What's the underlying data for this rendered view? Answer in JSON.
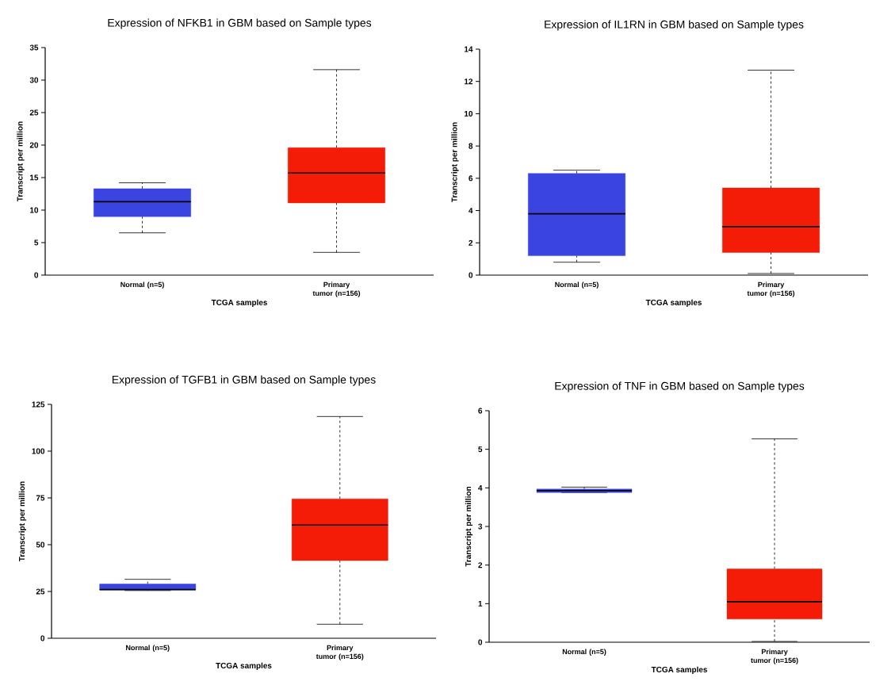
{
  "chart_data": [
    {
      "type": "box",
      "title": "Expression of NFKB1 in GBM based on Sample types",
      "xlabel": "TCGA samples",
      "ylabel": "Transcript per million",
      "categories": [
        "Normal (n=5)",
        "Primary tumor (n=156)"
      ],
      "colors": [
        "#3a44e0",
        "#f41c06"
      ],
      "boxes": [
        {
          "low": 6.5,
          "q1": 9.0,
          "median": 11.3,
          "q3": 13.3,
          "high": 14.2
        },
        {
          "low": 3.5,
          "q1": 11.1,
          "median": 15.7,
          "q3": 19.6,
          "high": 31.6
        }
      ],
      "ylim": [
        0,
        35
      ],
      "yticks": [
        0,
        5,
        10,
        15,
        20,
        25,
        30,
        35
      ]
    },
    {
      "type": "box",
      "title": "Expression of IL1RN in GBM based on Sample types",
      "xlabel": "TCGA samples",
      "ylabel": "Transcript per million",
      "categories": [
        "Normal (n=5)",
        "Primary tumor (n=156)"
      ],
      "colors": [
        "#3a44e0",
        "#f41c06"
      ],
      "boxes": [
        {
          "low": 0.8,
          "q1": 1.2,
          "median": 3.8,
          "q3": 6.3,
          "high": 6.5
        },
        {
          "low": 0.1,
          "q1": 1.4,
          "median": 3.0,
          "q3": 5.4,
          "high": 12.7
        }
      ],
      "ylim": [
        0,
        14
      ],
      "yticks": [
        0,
        2,
        4,
        6,
        8,
        10,
        12,
        14
      ]
    },
    {
      "type": "box",
      "title": "Expression of TGFB1 in GBM based on Sample types",
      "xlabel": "TCGA samples",
      "ylabel": "Transcript per million",
      "categories": [
        "Normal (n=5)",
        "Primary tumor (n=156)"
      ],
      "colors": [
        "#3a44e0",
        "#f41c06"
      ],
      "boxes": [
        {
          "low": 25.5,
          "q1": 25.8,
          "median": 26,
          "q3": 29,
          "high": 31.5
        },
        {
          "low": 7.5,
          "q1": 41.5,
          "median": 60.5,
          "q3": 74.5,
          "high": 118.5
        }
      ],
      "ylim": [
        0,
        125
      ],
      "yticks": [
        0,
        25,
        50,
        75,
        100,
        125
      ]
    },
    {
      "type": "box",
      "title": "Expression of TNF in GBM based on Sample types",
      "xlabel": "TCGA samples",
      "ylabel": "Transcript per million",
      "categories": [
        "Normal (n=5)",
        "Primary tumor (n=156)"
      ],
      "colors": [
        "#3a44e0",
        "#f41c06"
      ],
      "boxes": [
        {
          "low": 3.88,
          "q1": 3.88,
          "median": 3.93,
          "q3": 3.97,
          "high": 4.02
        },
        {
          "low": 0.02,
          "q1": 0.6,
          "median": 1.05,
          "q3": 1.9,
          "high": 5.27
        }
      ],
      "ylim": [
        0,
        6
      ],
      "yticks": [
        0,
        1,
        2,
        3,
        4,
        5,
        6
      ]
    }
  ]
}
